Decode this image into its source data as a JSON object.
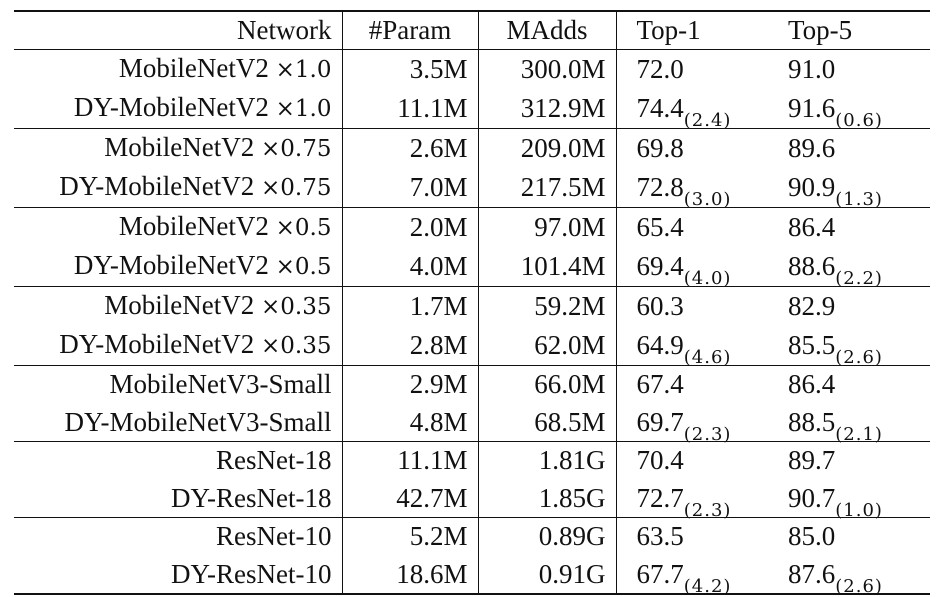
{
  "table": {
    "headers": [
      "Network",
      "#Param",
      "MAdds",
      "Top-1",
      "Top-5"
    ],
    "groups": [
      {
        "rows": [
          {
            "name": "MobileNetV2",
            "mult": "×1.0",
            "param": "3.5M",
            "madds": "300.0M",
            "top1": "72.0",
            "top1_gain": "",
            "top5": "91.0",
            "top5_gain": ""
          },
          {
            "name": "DY-MobileNetV2",
            "mult": "×1.0",
            "param": "11.1M",
            "madds": "312.9M",
            "top1": "74.4",
            "top1_gain": "(2.4)",
            "top5": "91.6",
            "top5_gain": "(0.6)"
          }
        ]
      },
      {
        "rows": [
          {
            "name": "MobileNetV2",
            "mult": "×0.75",
            "param": "2.6M",
            "madds": "209.0M",
            "top1": "69.8",
            "top1_gain": "",
            "top5": "89.6",
            "top5_gain": ""
          },
          {
            "name": "DY-MobileNetV2",
            "mult": "×0.75",
            "param": "7.0M",
            "madds": "217.5M",
            "top1": "72.8",
            "top1_gain": "(3.0)",
            "top5": "90.9",
            "top5_gain": "(1.3)"
          }
        ]
      },
      {
        "rows": [
          {
            "name": "MobileNetV2",
            "mult": "×0.5",
            "param": "2.0M",
            "madds": "97.0M",
            "top1": "65.4",
            "top1_gain": "",
            "top5": "86.4",
            "top5_gain": ""
          },
          {
            "name": "DY-MobileNetV2",
            "mult": "×0.5",
            "param": "4.0M",
            "madds": "101.4M",
            "top1": "69.4",
            "top1_gain": "(4.0)",
            "top5": "88.6",
            "top5_gain": "(2.2)"
          }
        ]
      },
      {
        "rows": [
          {
            "name": "MobileNetV2",
            "mult": "×0.35",
            "param": "1.7M",
            "madds": "59.2M",
            "top1": "60.3",
            "top1_gain": "",
            "top5": "82.9",
            "top5_gain": ""
          },
          {
            "name": "DY-MobileNetV2",
            "mult": "×0.35",
            "param": "2.8M",
            "madds": "62.0M",
            "top1": "64.9",
            "top1_gain": "(4.6)",
            "top5": "85.5",
            "top5_gain": "(2.6)"
          }
        ]
      },
      {
        "rows": [
          {
            "name": "MobileNetV3-Small",
            "mult": "",
            "param": "2.9M",
            "madds": "66.0M",
            "top1": "67.4",
            "top1_gain": "",
            "top5": "86.4",
            "top5_gain": ""
          },
          {
            "name": "DY-MobileNetV3-Small",
            "mult": "",
            "param": "4.8M",
            "madds": "68.5M",
            "top1": "69.7",
            "top1_gain": "(2.3)",
            "top5": "88.5",
            "top5_gain": "(2.1)"
          }
        ]
      },
      {
        "rows": [
          {
            "name": "ResNet-18",
            "mult": "",
            "param": "11.1M",
            "madds": "1.81G",
            "top1": "70.4",
            "top1_gain": "",
            "top5": "89.7",
            "top5_gain": ""
          },
          {
            "name": "DY-ResNet-18",
            "mult": "",
            "param": "42.7M",
            "madds": "1.85G",
            "top1": "72.7",
            "top1_gain": "(2.3)",
            "top5": "90.7",
            "top5_gain": "(1.0)"
          }
        ]
      },
      {
        "rows": [
          {
            "name": "ResNet-10",
            "mult": "",
            "param": "5.2M",
            "madds": "0.89G",
            "top1": "63.5",
            "top1_gain": "",
            "top5": "85.0",
            "top5_gain": ""
          },
          {
            "name": "DY-ResNet-10",
            "mult": "",
            "param": "18.6M",
            "madds": "0.91G",
            "top1": "67.7",
            "top1_gain": "(4.2)",
            "top5": "87.6",
            "top5_gain": "(2.6)"
          }
        ]
      }
    ]
  }
}
